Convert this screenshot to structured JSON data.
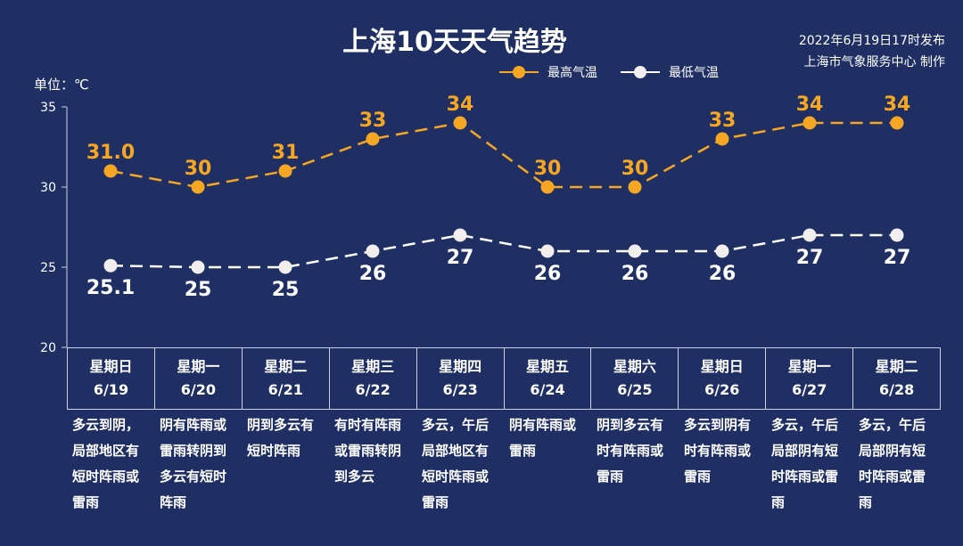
{
  "header": {
    "title": "上海10天天气趋势",
    "publish_line1": "2022年6月19日17时发布",
    "publish_line2": "上海市气象服务中心 制作"
  },
  "unit_label": "单位：℃",
  "colors": {
    "background": "#1f2f63",
    "high": "#f5a623",
    "low": "#ffffff"
  },
  "chart_data": {
    "type": "line",
    "title": "上海10天天气趋势",
    "ylim": [
      20,
      35
    ],
    "yticks": [
      20,
      25,
      30,
      35
    ],
    "legend_position": "top-right",
    "categories": [
      "6/19",
      "6/20",
      "6/21",
      "6/22",
      "6/23",
      "6/24",
      "6/25",
      "6/26",
      "6/27",
      "6/28"
    ],
    "series": [
      {
        "name": "最高气温",
        "values": [
          31.0,
          30,
          31,
          33,
          34,
          30,
          30,
          33,
          34,
          34
        ],
        "labels": [
          "31.0",
          "30",
          "31",
          "33",
          "34",
          "30",
          "30",
          "33",
          "34",
          "34"
        ]
      },
      {
        "name": "最低气温",
        "values": [
          25.1,
          25,
          25,
          26,
          27,
          26,
          26,
          26,
          27,
          27
        ],
        "labels": [
          "25.1",
          "25",
          "25",
          "26",
          "27",
          "26",
          "26",
          "26",
          "27",
          "27"
        ]
      }
    ]
  },
  "days": [
    {
      "weekday": "星期日",
      "date": "6/19",
      "desc": "多云到阴，局部地区有短时阵雨或雷雨"
    },
    {
      "weekday": "星期一",
      "date": "6/20",
      "desc": "阴有阵雨或雷雨转阴到多云有短时阵雨"
    },
    {
      "weekday": "星期二",
      "date": "6/21",
      "desc": "阴到多云有短时阵雨"
    },
    {
      "weekday": "星期三",
      "date": "6/22",
      "desc": "有时有阵雨或雷雨转阴到多云"
    },
    {
      "weekday": "星期四",
      "date": "6/23",
      "desc": "多云，午后局部地区有短时阵雨或雷雨"
    },
    {
      "weekday": "星期五",
      "date": "6/24",
      "desc": "阴有阵雨或雷雨"
    },
    {
      "weekday": "星期六",
      "date": "6/25",
      "desc": "阴到多云有时有阵雨或雷雨"
    },
    {
      "weekday": "星期日",
      "date": "6/26",
      "desc": "多云到阴有时有阵雨或雷雨"
    },
    {
      "weekday": "星期一",
      "date": "6/27",
      "desc": "多云，午后局部阴有短时阵雨或雷雨"
    },
    {
      "weekday": "星期二",
      "date": "6/28",
      "desc": "多云，午后局部阴有短时阵雨或雷雨"
    }
  ]
}
